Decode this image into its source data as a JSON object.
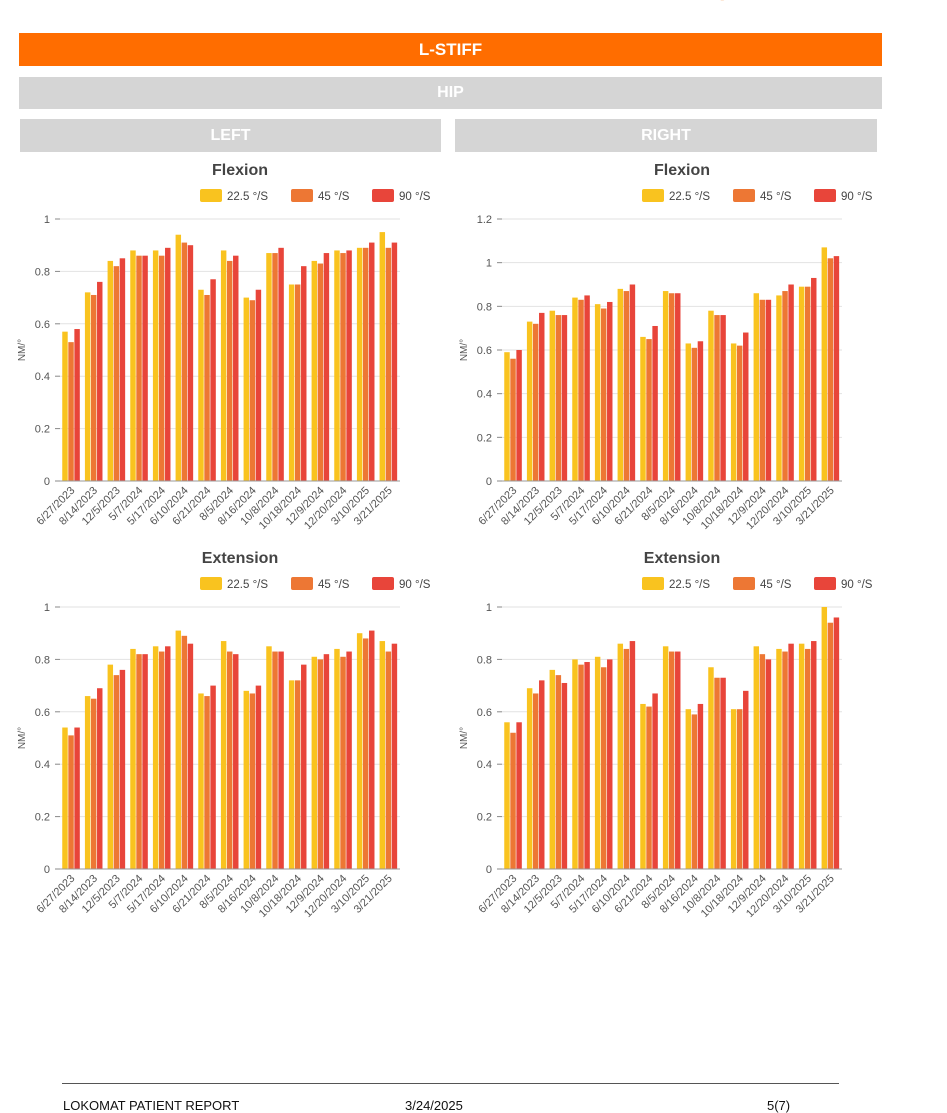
{
  "header": {
    "banner_title": "L-STIFF",
    "section_title": "HIP",
    "left_label": "LEFT",
    "right_label": "RIGHT"
  },
  "colors": {
    "brand_orange": "#ff6d00",
    "header_gray": "#d5d5d5",
    "series": [
      "#f9c31f",
      "#ed7734",
      "#e8453a"
    ]
  },
  "footer": {
    "report_name": "LOKOMAT PATIENT REPORT",
    "date": "3/24/2025",
    "page": "5(7)"
  },
  "chart_data": [
    {
      "id": "left-flexion",
      "type": "bar",
      "title": "Flexion",
      "ylabel": "NM/°",
      "ylim": [
        0,
        1
      ],
      "yticks": [
        0,
        0.2,
        0.4,
        0.6,
        0.8,
        1
      ],
      "grid": true,
      "legend_position": "top",
      "categories": [
        "6/27/2023",
        "8/14/2023",
        "12/5/2023",
        "5/7/2024",
        "5/17/2024",
        "6/10/2024",
        "6/21/2024",
        "8/5/2024",
        "8/16/2024",
        "10/8/2024",
        "10/18/2024",
        "12/9/2024",
        "12/20/2024",
        "3/10/2025",
        "3/21/2025"
      ],
      "series": [
        {
          "name": "22.5 °/S",
          "values": [
            0.57,
            0.72,
            0.84,
            0.88,
            0.88,
            0.94,
            0.73,
            0.88,
            0.7,
            0.87,
            0.75,
            0.84,
            0.88,
            0.89,
            0.95
          ]
        },
        {
          "name": "45 °/S",
          "values": [
            0.53,
            0.71,
            0.82,
            0.86,
            0.86,
            0.91,
            0.71,
            0.84,
            0.69,
            0.87,
            0.75,
            0.83,
            0.87,
            0.89,
            0.89
          ]
        },
        {
          "name": "90 °/S",
          "values": [
            0.58,
            0.76,
            0.85,
            0.86,
            0.89,
            0.9,
            0.77,
            0.86,
            0.73,
            0.89,
            0.82,
            0.87,
            0.88,
            0.91,
            0.91
          ]
        }
      ]
    },
    {
      "id": "right-flexion",
      "type": "bar",
      "title": "Flexion",
      "ylabel": "NM/°",
      "ylim": [
        0,
        1.2
      ],
      "yticks": [
        0,
        0.2,
        0.4,
        0.6,
        0.8,
        1,
        1.2
      ],
      "grid": true,
      "legend_position": "top",
      "categories": [
        "6/27/2023",
        "8/14/2023",
        "12/5/2023",
        "5/7/2024",
        "5/17/2024",
        "6/10/2024",
        "6/21/2024",
        "8/5/2024",
        "8/16/2024",
        "10/8/2024",
        "10/18/2024",
        "12/9/2024",
        "12/20/2024",
        "3/10/2025",
        "3/21/2025"
      ],
      "series": [
        {
          "name": "22.5 °/S",
          "values": [
            0.59,
            0.73,
            0.78,
            0.84,
            0.81,
            0.88,
            0.66,
            0.87,
            0.63,
            0.78,
            0.63,
            0.86,
            0.85,
            0.89,
            1.07
          ]
        },
        {
          "name": "45 °/S",
          "values": [
            0.56,
            0.72,
            0.76,
            0.83,
            0.79,
            0.87,
            0.65,
            0.86,
            0.61,
            0.76,
            0.62,
            0.83,
            0.87,
            0.89,
            1.02
          ]
        },
        {
          "name": "90 °/S",
          "values": [
            0.6,
            0.77,
            0.76,
            0.85,
            0.82,
            0.9,
            0.71,
            0.86,
            0.64,
            0.76,
            0.68,
            0.83,
            0.9,
            0.93,
            1.03
          ]
        }
      ]
    },
    {
      "id": "left-extension",
      "type": "bar",
      "title": "Extension",
      "ylabel": "NM/°",
      "ylim": [
        0,
        1
      ],
      "yticks": [
        0,
        0.2,
        0.4,
        0.6,
        0.8,
        1
      ],
      "grid": true,
      "legend_position": "top",
      "categories": [
        "6/27/2023",
        "8/14/2023",
        "12/5/2023",
        "5/7/2024",
        "5/17/2024",
        "6/10/2024",
        "6/21/2024",
        "8/5/2024",
        "8/16/2024",
        "10/8/2024",
        "10/18/2024",
        "12/9/2024",
        "12/20/2024",
        "3/10/2025",
        "3/21/2025"
      ],
      "series": [
        {
          "name": "22.5 °/S",
          "values": [
            0.54,
            0.66,
            0.78,
            0.84,
            0.85,
            0.91,
            0.67,
            0.87,
            0.68,
            0.85,
            0.72,
            0.81,
            0.84,
            0.9,
            0.87
          ]
        },
        {
          "name": "45 °/S",
          "values": [
            0.51,
            0.65,
            0.74,
            0.82,
            0.83,
            0.89,
            0.66,
            0.83,
            0.67,
            0.83,
            0.72,
            0.8,
            0.81,
            0.88,
            0.83
          ]
        },
        {
          "name": "90 °/S",
          "values": [
            0.54,
            0.69,
            0.76,
            0.82,
            0.85,
            0.86,
            0.7,
            0.82,
            0.7,
            0.83,
            0.78,
            0.82,
            0.83,
            0.91,
            0.86
          ]
        }
      ]
    },
    {
      "id": "right-extension",
      "type": "bar",
      "title": "Extension",
      "ylabel": "NM/°",
      "ylim": [
        0,
        1
      ],
      "yticks": [
        0,
        0.2,
        0.4,
        0.6,
        0.8,
        1
      ],
      "grid": true,
      "legend_position": "top",
      "categories": [
        "6/27/2023",
        "8/14/2023",
        "12/5/2023",
        "5/7/2024",
        "5/17/2024",
        "6/10/2024",
        "6/21/2024",
        "8/5/2024",
        "8/16/2024",
        "10/8/2024",
        "10/18/2024",
        "12/9/2024",
        "12/20/2024",
        "3/10/2025",
        "3/21/2025"
      ],
      "series": [
        {
          "name": "22.5 °/S",
          "values": [
            0.56,
            0.69,
            0.76,
            0.8,
            0.81,
            0.86,
            0.63,
            0.85,
            0.61,
            0.77,
            0.61,
            0.85,
            0.84,
            0.86,
            1.0
          ]
        },
        {
          "name": "45 °/S",
          "values": [
            0.52,
            0.67,
            0.74,
            0.78,
            0.77,
            0.84,
            0.62,
            0.83,
            0.59,
            0.73,
            0.61,
            0.82,
            0.83,
            0.84,
            0.94
          ]
        },
        {
          "name": "90 °/S",
          "values": [
            0.56,
            0.72,
            0.71,
            0.79,
            0.8,
            0.87,
            0.67,
            0.83,
            0.63,
            0.73,
            0.68,
            0.8,
            0.86,
            0.87,
            0.96
          ]
        }
      ]
    }
  ]
}
